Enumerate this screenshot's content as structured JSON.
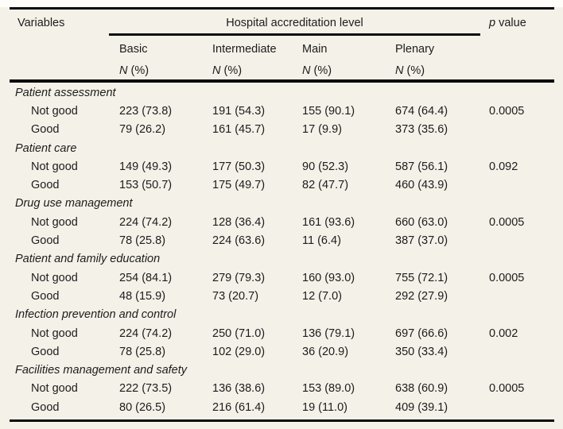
{
  "page": {
    "background_color": "#f4f1e8",
    "rule_color": "#0a0a0a",
    "text_color": "#1c1c1c"
  },
  "table": {
    "variables_header": "Variables",
    "group_header": "Hospital accreditation level",
    "p_header": {
      "italic": "p",
      "rest": " value"
    },
    "count_header": {
      "italic": "N",
      "rest": " (%)"
    },
    "level_columns": [
      "Basic",
      "Intermediate",
      "Main",
      "Plenary"
    ],
    "row_labels": {
      "not_good": "Not good",
      "good": "Good"
    },
    "sections": [
      {
        "title": "Patient assessment",
        "rows": [
          {
            "label": "Not good",
            "basic": "223 (73.8)",
            "intermediate": "191 (54.3)",
            "main": "155 (90.1)",
            "plenary": "674 (64.4)",
            "p": "0.0005"
          },
          {
            "label": "Good",
            "basic": "79 (26.2)",
            "intermediate": "161 (45.7)",
            "main": "17 (9.9)",
            "plenary": "373 (35.6)",
            "p": ""
          }
        ]
      },
      {
        "title": "Patient care",
        "rows": [
          {
            "label": "Not good",
            "basic": "149 (49.3)",
            "intermediate": "177 (50.3)",
            "main": "90 (52.3)",
            "plenary": "587 (56.1)",
            "p": "0.092"
          },
          {
            "label": "Good",
            "basic": "153 (50.7)",
            "intermediate": "175 (49.7)",
            "main": "82 (47.7)",
            "plenary": "460 (43.9)",
            "p": ""
          }
        ]
      },
      {
        "title": "Drug use management",
        "rows": [
          {
            "label": "Not good",
            "basic": "224 (74.2)",
            "intermediate": "128 (36.4)",
            "main": "161 (93.6)",
            "plenary": "660 (63.0)",
            "p": "0.0005"
          },
          {
            "label": "Good",
            "basic": "78 (25.8)",
            "intermediate": "224 (63.6)",
            "main": "11 (6.4)",
            "plenary": "387 (37.0)",
            "p": ""
          }
        ]
      },
      {
        "title": "Patient and family education",
        "rows": [
          {
            "label": "Not good",
            "basic": "254 (84.1)",
            "intermediate": "279 (79.3)",
            "main": "160 (93.0)",
            "plenary": "755 (72.1)",
            "p": "0.0005"
          },
          {
            "label": "Good",
            "basic": "48 (15.9)",
            "intermediate": "73 (20.7)",
            "main": "12 (7.0)",
            "plenary": "292 (27.9)",
            "p": ""
          }
        ]
      },
      {
        "title": "Infection prevention and control",
        "rows": [
          {
            "label": "Not good",
            "basic": "224 (74.2)",
            "intermediate": "250 (71.0)",
            "main": "136 (79.1)",
            "plenary": "697 (66.6)",
            "p": "0.002"
          },
          {
            "label": "Good",
            "basic": "78 (25.8)",
            "intermediate": "102 (29.0)",
            "main": "36 (20.9)",
            "plenary": "350 (33.4)",
            "p": ""
          }
        ]
      },
      {
        "title": "Facilities management and safety",
        "rows": [
          {
            "label": "Not good",
            "basic": "222 (73.5)",
            "intermediate": "136 (38.6)",
            "main": "153 (89.0)",
            "plenary": "638 (60.9)",
            "p": "0.0005"
          },
          {
            "label": "Good",
            "basic": "80 (26.5)",
            "intermediate": "216 (61.4)",
            "main": "19 (11.0)",
            "plenary": "409 (39.1)",
            "p": ""
          }
        ]
      }
    ]
  }
}
